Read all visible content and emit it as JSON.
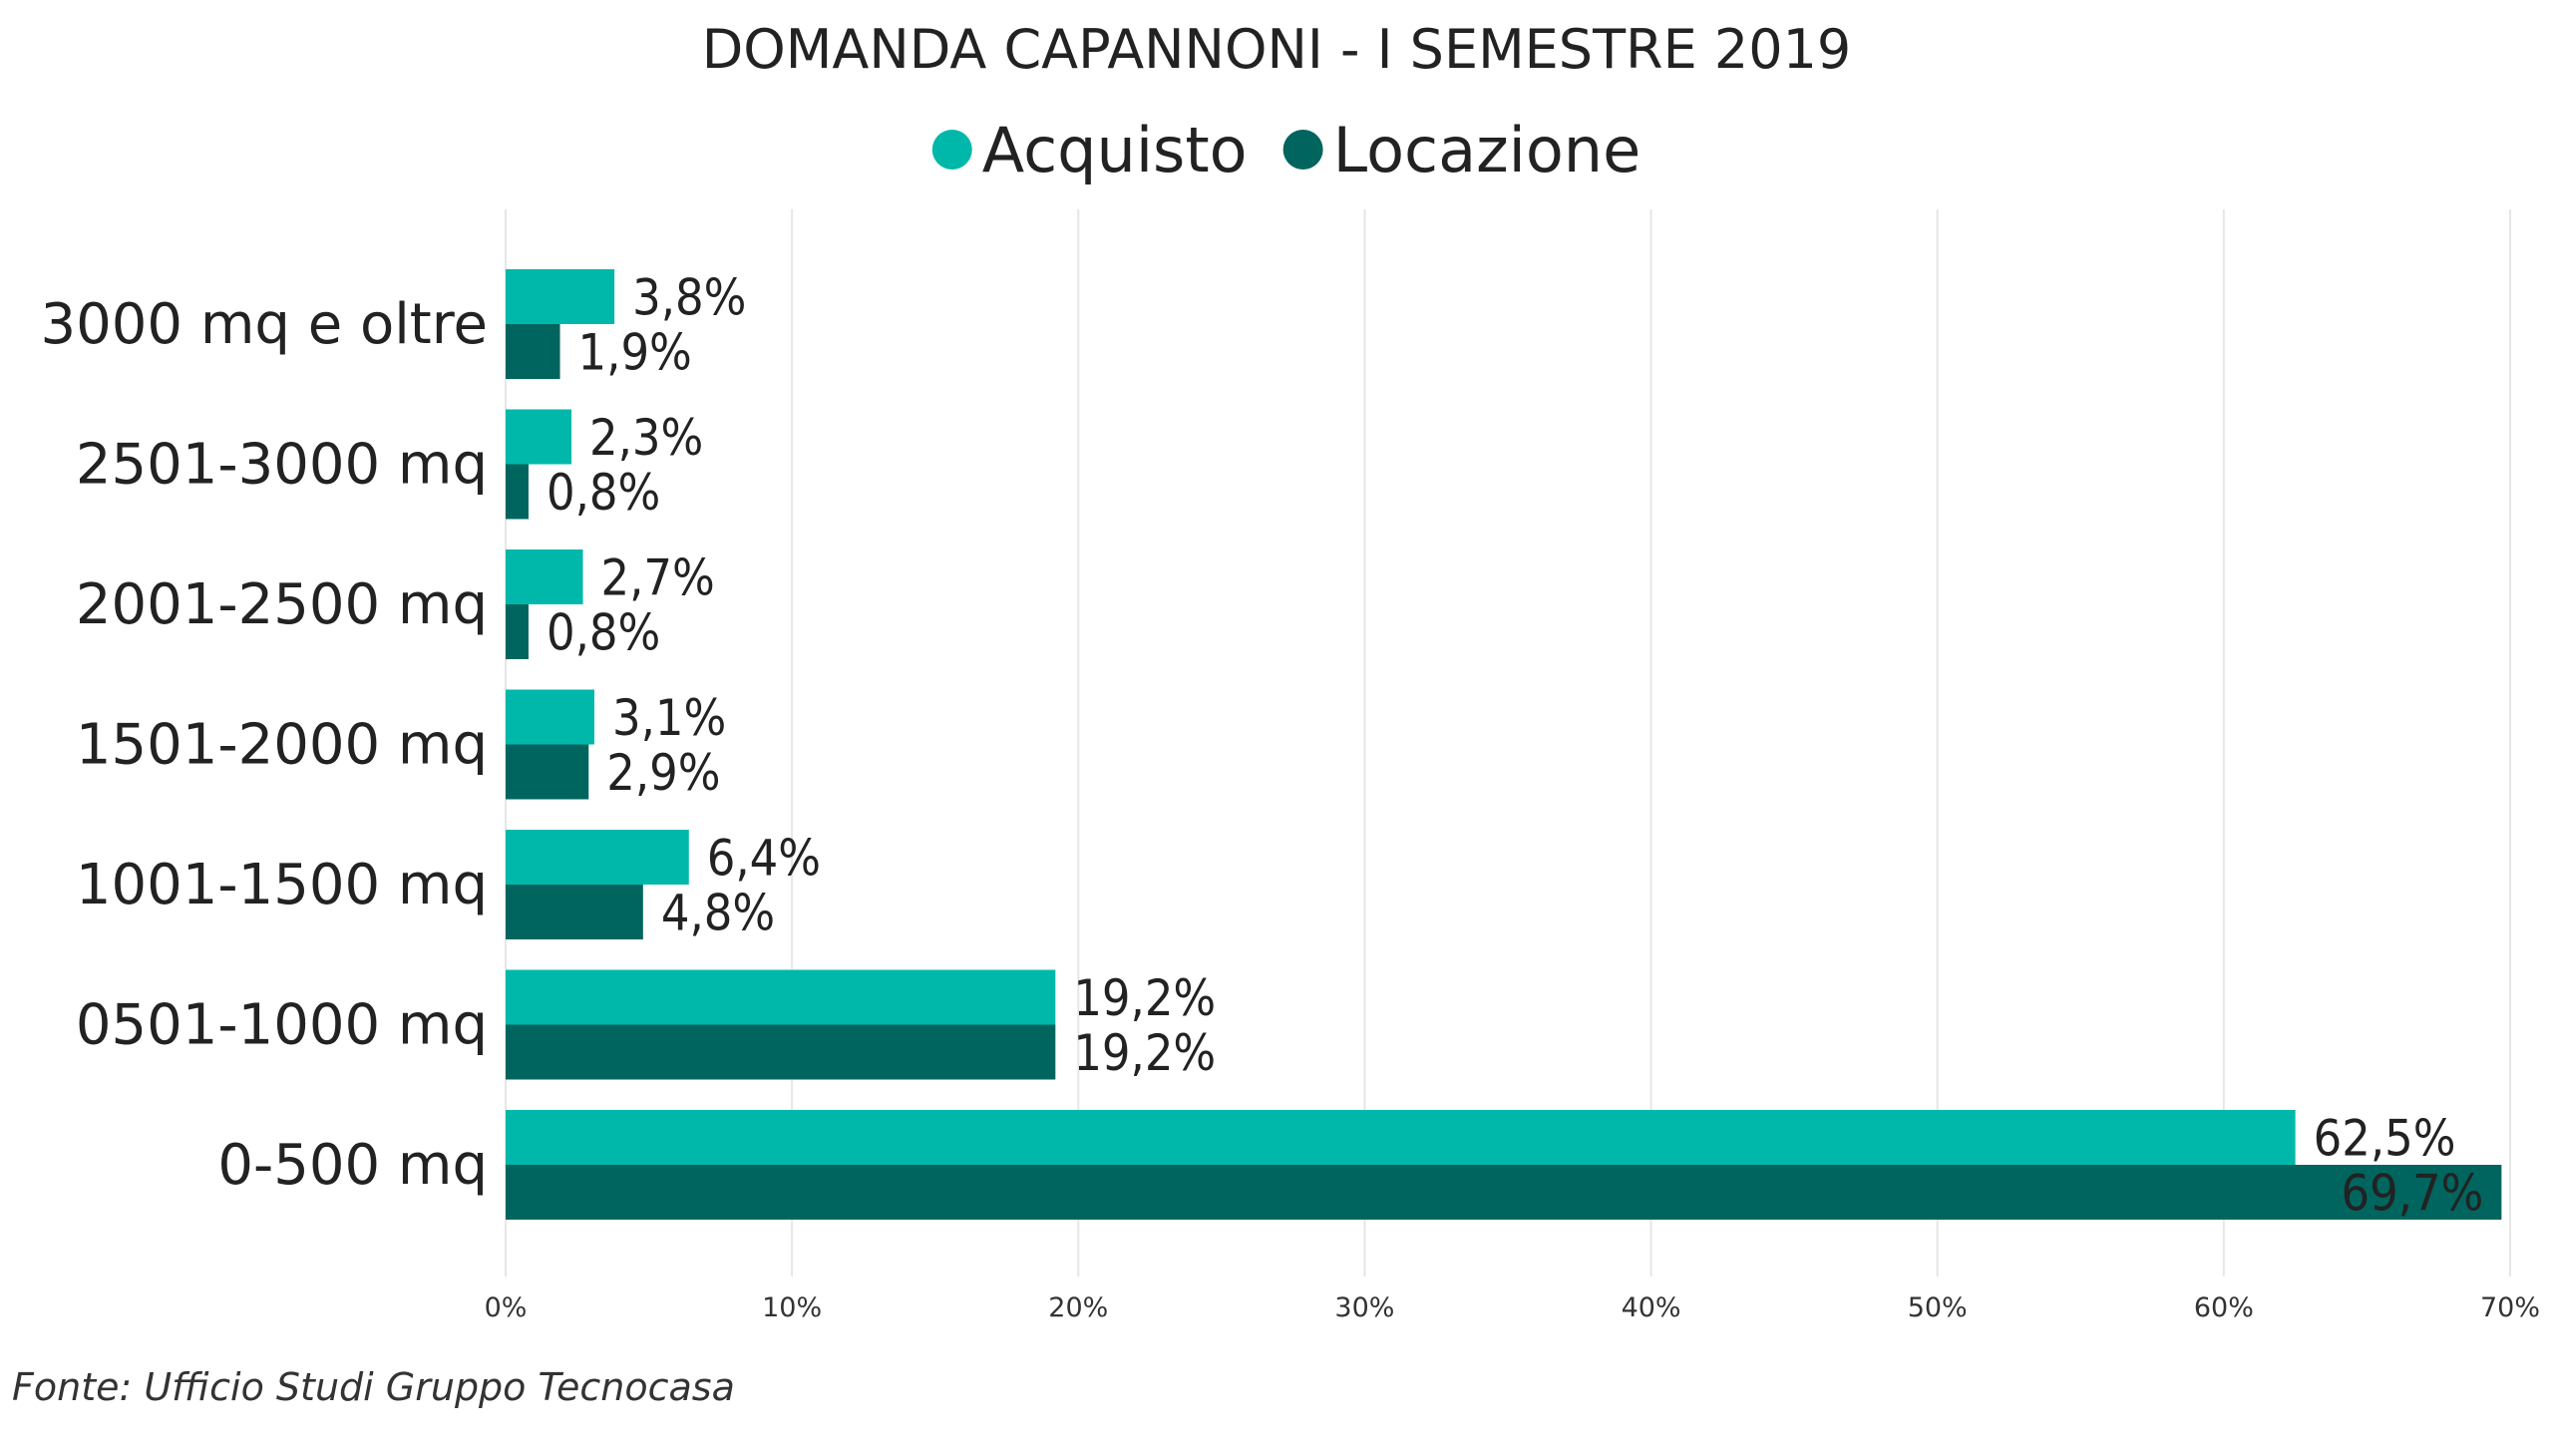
{
  "chart_data": {
    "type": "bar",
    "orientation": "horizontal",
    "title": "DOMANDA CAPANNONI - I SEMESTRE 2019",
    "categories": [
      "3000 mq e oltre",
      "2501-3000 mq",
      "2001-2500 mq",
      "1501-2000 mq",
      "1001-1500 mq",
      "0501-1000 mq",
      "0-500 mq"
    ],
    "series": [
      {
        "name": "Acquisto",
        "color": "#00B8AA",
        "values": [
          3.8,
          2.3,
          2.7,
          3.1,
          6.4,
          19.2,
          62.5
        ],
        "labels": [
          "3,8%",
          "2,3%",
          "2,7%",
          "3,1%",
          "6,4%",
          "19,2%",
          "62,5%"
        ]
      },
      {
        "name": "Locazione",
        "color": "#00655E",
        "values": [
          1.9,
          0.8,
          0.8,
          2.9,
          4.8,
          19.2,
          69.7
        ],
        "labels": [
          "1,9%",
          "0,8%",
          "0,8%",
          "2,9%",
          "4,8%",
          "19,2%",
          "69,7%"
        ]
      }
    ],
    "xlim": [
      0,
      70
    ],
    "xticks": [
      0,
      10,
      20,
      30,
      40,
      50,
      60,
      70
    ],
    "xtick_labels": [
      "0%",
      "10%",
      "20%",
      "30%",
      "40%",
      "50%",
      "60%",
      "70%"
    ],
    "xlabel": "",
    "ylabel": "",
    "grid": true,
    "legend_position": "top-center",
    "source": "Fonte: Ufficio Studi Gruppo Tecnocasa"
  }
}
